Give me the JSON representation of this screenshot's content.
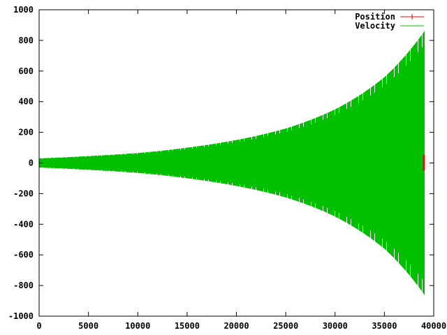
{
  "chart_data": {
    "type": "line",
    "title": "",
    "xlabel": "",
    "ylabel": "",
    "xlim": [
      0,
      40000
    ],
    "ylim": [
      -1000,
      1000
    ],
    "xticks": [
      0,
      5000,
      10000,
      15000,
      20000,
      25000,
      30000,
      35000,
      40000
    ],
    "yticks": [
      -1000,
      -800,
      -600,
      -400,
      -200,
      0,
      200,
      400,
      600,
      800,
      1000
    ],
    "xtick_labels": [
      "0",
      "5000",
      "10000",
      "15000",
      "20000",
      "25000",
      "30000",
      "35000",
      "40000"
    ],
    "ytick_labels": [
      "-1000",
      "-800",
      "-600",
      "-400",
      "-200",
      "0",
      "200",
      "400",
      "600",
      "800",
      "1000"
    ],
    "grid": false,
    "legend": {
      "placement": "top-right"
    },
    "series": [
      {
        "name": "Position",
        "color": "#ff0000",
        "style": "linespoints",
        "x_range": [
          38950,
          39050
        ],
        "y_range": [
          -50,
          55
        ]
      },
      {
        "name": "Velocity",
        "color": "#00c000",
        "style": "line",
        "oscillation": "rapid symmetric oscillation with growing amplitude",
        "x_range": [
          0,
          39050
        ],
        "envelope_x": [
          0,
          5000,
          10000,
          15000,
          20000,
          25000,
          30000,
          35000,
          39050
        ],
        "envelope_amplitude": [
          30,
          45,
          65,
          100,
          150,
          225,
          350,
          560,
          860
        ]
      }
    ]
  }
}
